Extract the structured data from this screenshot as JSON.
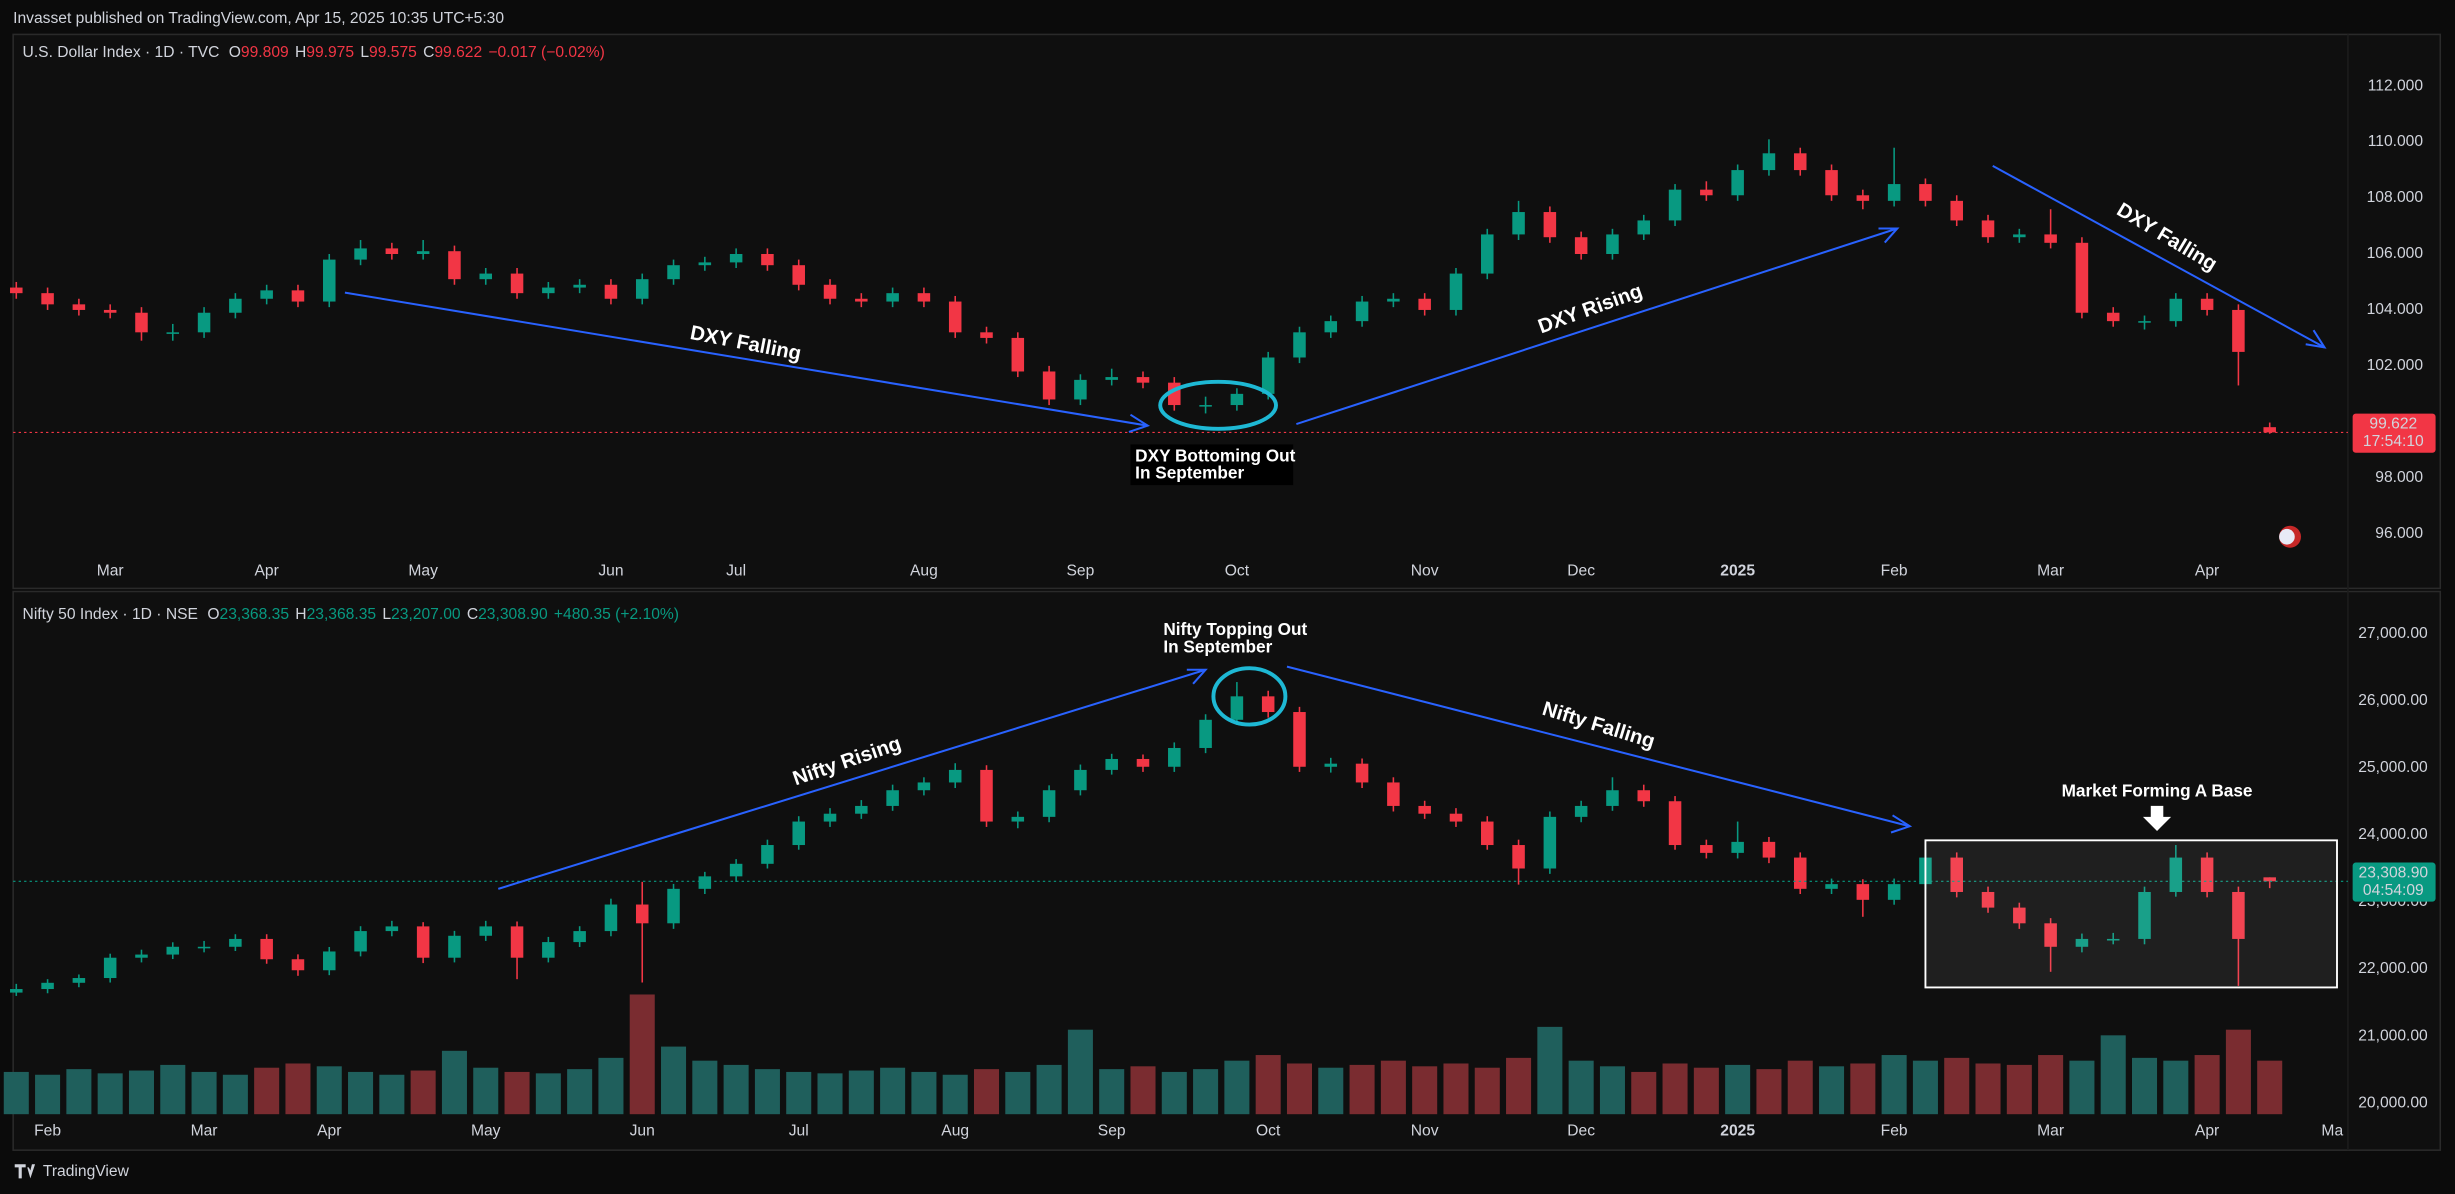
{
  "header": "Invasset published on TradingView.com, Apr 15, 2025 10:35 UTC+5:30",
  "footer": "TradingView",
  "chart_data": [
    {
      "type": "candlestick",
      "legend": {
        "symbol": "U.S. Dollar Index · 1D · TVC",
        "fields": [
          {
            "key": "O",
            "value": "99.809"
          },
          {
            "key": "H",
            "value": "99.975"
          },
          {
            "key": "L",
            "value": "99.575"
          },
          {
            "key": "C",
            "value": "99.622"
          }
        ],
        "change": "−0.017 (−0.02%)"
      },
      "legend_color": "#f23645",
      "up_color": "#089981",
      "down_color": "#f23645",
      "tag_color": "#f23645",
      "last_label": "99.622",
      "countdown": "17:54:10",
      "grid": false,
      "ylim": [
        95.22,
        113.85
      ],
      "yticks": [
        {
          "value": 96,
          "label": "96.000"
        },
        {
          "value": 98,
          "label": "98.000"
        },
        {
          "value": 100,
          "label": "100.000"
        },
        {
          "value": 102,
          "label": "102.000"
        },
        {
          "value": 104,
          "label": "104.000"
        },
        {
          "value": 106,
          "label": "106.000"
        },
        {
          "value": 108,
          "label": "108.000"
        },
        {
          "value": 110,
          "label": "110.000"
        },
        {
          "value": 112,
          "label": "112.000"
        }
      ],
      "categories": [
        null,
        null,
        null,
        "Mar",
        null,
        null,
        null,
        null,
        "Apr",
        null,
        null,
        null,
        null,
        "May",
        null,
        null,
        null,
        null,
        null,
        "Jun",
        null,
        null,
        null,
        "Jul",
        null,
        null,
        null,
        null,
        null,
        "Aug",
        null,
        null,
        null,
        null,
        "Sep",
        null,
        null,
        null,
        null,
        "Oct",
        null,
        null,
        null,
        null,
        null,
        "Nov",
        null,
        null,
        null,
        null,
        "Dec",
        null,
        null,
        null,
        null,
        "2025",
        null,
        null,
        null,
        null,
        "Feb",
        null,
        null,
        null,
        null,
        "Mar",
        null,
        null,
        null,
        null,
        "Apr",
        null,
        null
      ],
      "ohlc": [
        [
          104.8,
          105.0,
          104.4,
          104.6
        ],
        [
          104.6,
          104.8,
          104.0,
          104.2
        ],
        [
          104.2,
          104.4,
          103.8,
          104.0
        ],
        [
          104.0,
          104.2,
          103.7,
          103.9
        ],
        [
          103.9,
          104.1,
          102.9,
          103.2
        ],
        [
          103.2,
          103.5,
          102.9,
          103.2
        ],
        [
          103.2,
          104.1,
          103.0,
          103.9
        ],
        [
          103.9,
          104.6,
          103.7,
          104.4
        ],
        [
          104.4,
          104.9,
          104.2,
          104.7
        ],
        [
          104.7,
          104.9,
          104.1,
          104.3
        ],
        [
          104.3,
          106.0,
          104.1,
          105.8
        ],
        [
          105.8,
          106.5,
          105.6,
          106.2
        ],
        [
          106.2,
          106.4,
          105.8,
          106.0
        ],
        [
          106.0,
          106.5,
          105.8,
          106.1
        ],
        [
          106.1,
          106.3,
          104.9,
          105.1
        ],
        [
          105.1,
          105.5,
          104.9,
          105.3
        ],
        [
          105.3,
          105.5,
          104.4,
          104.6
        ],
        [
          104.6,
          105.0,
          104.4,
          104.8
        ],
        [
          104.8,
          105.1,
          104.6,
          104.9
        ],
        [
          104.9,
          105.1,
          104.2,
          104.4
        ],
        [
          104.4,
          105.3,
          104.2,
          105.1
        ],
        [
          105.1,
          105.8,
          104.9,
          105.6
        ],
        [
          105.6,
          105.9,
          105.4,
          105.7
        ],
        [
          105.7,
          106.2,
          105.5,
          106.0
        ],
        [
          106.0,
          106.2,
          105.4,
          105.6
        ],
        [
          105.6,
          105.8,
          104.7,
          104.9
        ],
        [
          104.9,
          105.1,
          104.2,
          104.4
        ],
        [
          104.4,
          104.6,
          104.1,
          104.3
        ],
        [
          104.3,
          104.8,
          104.1,
          104.6
        ],
        [
          104.6,
          104.8,
          104.1,
          104.3
        ],
        [
          104.3,
          104.5,
          103.0,
          103.2
        ],
        [
          103.2,
          103.4,
          102.8,
          103.0
        ],
        [
          103.0,
          103.2,
          101.6,
          101.8
        ],
        [
          101.8,
          102.0,
          100.6,
          100.8
        ],
        [
          100.8,
          101.7,
          100.6,
          101.5
        ],
        [
          101.5,
          101.9,
          101.3,
          101.6
        ],
        [
          101.6,
          101.8,
          101.2,
          101.4
        ],
        [
          101.4,
          101.6,
          100.4,
          100.6
        ],
        [
          100.6,
          100.9,
          100.3,
          100.6
        ],
        [
          100.6,
          101.2,
          100.4,
          101.0
        ],
        [
          101.0,
          102.5,
          100.8,
          102.3
        ],
        [
          102.3,
          103.4,
          102.1,
          103.2
        ],
        [
          103.2,
          103.8,
          103.0,
          103.6
        ],
        [
          103.6,
          104.5,
          103.4,
          104.3
        ],
        [
          104.3,
          104.6,
          104.1,
          104.4
        ],
        [
          104.4,
          104.6,
          103.8,
          104.0
        ],
        [
          104.0,
          105.5,
          103.8,
          105.3
        ],
        [
          105.3,
          106.9,
          105.1,
          106.7
        ],
        [
          106.7,
          107.9,
          106.5,
          107.5
        ],
        [
          107.5,
          107.7,
          106.4,
          106.6
        ],
        [
          106.6,
          106.8,
          105.8,
          106.0
        ],
        [
          106.0,
          106.9,
          105.8,
          106.7
        ],
        [
          106.7,
          107.4,
          106.5,
          107.2
        ],
        [
          107.2,
          108.5,
          107.0,
          108.3
        ],
        [
          108.3,
          108.6,
          107.9,
          108.1
        ],
        [
          108.1,
          109.2,
          107.9,
          109.0
        ],
        [
          109.0,
          110.1,
          108.8,
          109.6
        ],
        [
          109.6,
          109.8,
          108.8,
          109.0
        ],
        [
          109.0,
          109.2,
          107.9,
          108.1
        ],
        [
          108.1,
          108.3,
          107.6,
          107.9
        ],
        [
          107.9,
          109.8,
          107.7,
          108.5
        ],
        [
          108.5,
          108.7,
          107.7,
          107.9
        ],
        [
          107.9,
          108.1,
          107.0,
          107.2
        ],
        [
          107.2,
          107.4,
          106.4,
          106.6
        ],
        [
          106.6,
          106.9,
          106.4,
          106.7
        ],
        [
          106.7,
          107.6,
          106.2,
          106.4
        ],
        [
          106.4,
          106.6,
          103.7,
          103.9
        ],
        [
          103.9,
          104.1,
          103.4,
          103.6
        ],
        [
          103.6,
          103.8,
          103.3,
          103.6
        ],
        [
          103.6,
          104.6,
          103.4,
          104.4
        ],
        [
          104.4,
          104.6,
          103.8,
          104.0
        ],
        [
          104.0,
          104.2,
          101.3,
          102.5
        ],
        [
          99.809,
          99.975,
          99.575,
          99.622
        ]
      ],
      "annotations": [
        "DXY Falling",
        "DXY Bottoming Out",
        "In September",
        "DXY Rising",
        "DXY Falling"
      ]
    },
    {
      "type": "candlestick",
      "legend": {
        "symbol": "Nifty 50 Index · 1D · NSE",
        "fields": [
          {
            "key": "O",
            "value": "23,368.35"
          },
          {
            "key": "H",
            "value": "23,368.35"
          },
          {
            "key": "L",
            "value": "23,207.00"
          },
          {
            "key": "C",
            "value": "23,308.90"
          }
        ],
        "change": "+480.35 (+2.10%)"
      },
      "legend_color": "#089981",
      "up_color": "#089981",
      "down_color": "#f23645",
      "tag_color": "#089981",
      "volume_up_color": "#1f5f5c",
      "volume_down_color": "#7a2c30",
      "last_label": "23,308.90",
      "countdown": "04:54:09",
      "grid": false,
      "ylim": [
        19767,
        27583
      ],
      "yticks": [
        {
          "value": 20000,
          "label": "20,000.00"
        },
        {
          "value": 21000,
          "label": "21,000.00"
        },
        {
          "value": 22000,
          "label": "22,000.00"
        },
        {
          "value": 23000,
          "label": "23,000.00"
        },
        {
          "value": 24000,
          "label": "24,000.00"
        },
        {
          "value": 25000,
          "label": "25,000.00"
        },
        {
          "value": 26000,
          "label": "26,000.00"
        },
        {
          "value": 27000,
          "label": "27,000.00"
        }
      ],
      "volume_ylim": [
        0,
        1000
      ],
      "categories": [
        null,
        "Feb",
        null,
        null,
        null,
        null,
        "Mar",
        null,
        null,
        null,
        "Apr",
        null,
        null,
        null,
        null,
        "May",
        null,
        null,
        null,
        null,
        "Jun",
        null,
        null,
        null,
        null,
        "Jul",
        null,
        null,
        null,
        null,
        "Aug",
        null,
        null,
        null,
        null,
        "Sep",
        null,
        null,
        null,
        null,
        "Oct",
        null,
        null,
        null,
        null,
        "Nov",
        null,
        null,
        null,
        null,
        "Dec",
        null,
        null,
        null,
        null,
        "2025",
        null,
        null,
        null,
        null,
        "Feb",
        null,
        null,
        null,
        null,
        "Mar",
        null,
        null,
        null,
        null,
        "Apr",
        null,
        null,
        null,
        "Ma"
      ],
      "ohlc": [
        [
          21650,
          21780,
          21600,
          21703
        ],
        [
          21703,
          21850,
          21640,
          21796
        ],
        [
          21796,
          21920,
          21730,
          21867
        ],
        [
          21867,
          22230,
          21800,
          22170
        ],
        [
          22170,
          22290,
          22100,
          22217
        ],
        [
          22217,
          22400,
          22150,
          22333
        ],
        [
          22333,
          22420,
          22250,
          22333
        ],
        [
          22333,
          22520,
          22270,
          22450
        ],
        [
          22450,
          22520,
          22080,
          22147
        ],
        [
          22147,
          22220,
          21900,
          21983
        ],
        [
          21983,
          22330,
          21910,
          22263
        ],
        [
          22263,
          22640,
          22190,
          22567
        ],
        [
          22567,
          22720,
          22490,
          22637
        ],
        [
          22637,
          22700,
          22090,
          22170
        ],
        [
          22170,
          22570,
          22100,
          22497
        ],
        [
          22497,
          22720,
          22420,
          22637
        ],
        [
          22637,
          22710,
          21850,
          22170
        ],
        [
          22170,
          22480,
          22100,
          22403
        ],
        [
          22403,
          22640,
          22330,
          22567
        ],
        [
          22567,
          23050,
          22490,
          22963
        ],
        [
          22963,
          23300,
          21800,
          22683
        ],
        [
          22683,
          23270,
          22600,
          23197
        ],
        [
          23197,
          23450,
          23120,
          23383
        ],
        [
          23383,
          23640,
          23300,
          23570
        ],
        [
          23570,
          23930,
          23500,
          23850
        ],
        [
          23850,
          24280,
          23780,
          24200
        ],
        [
          24200,
          24400,
          24120,
          24317
        ],
        [
          24317,
          24520,
          24240,
          24433
        ],
        [
          24433,
          24750,
          24360,
          24667
        ],
        [
          24667,
          24860,
          24590,
          24783
        ],
        [
          24783,
          25070,
          24700,
          24970
        ],
        [
          24970,
          25040,
          24120,
          24200
        ],
        [
          24200,
          24350,
          24100,
          24270
        ],
        [
          24270,
          24740,
          24190,
          24667
        ],
        [
          24667,
          25050,
          24590,
          24970
        ],
        [
          24970,
          25210,
          24900,
          25133
        ],
        [
          25133,
          25200,
          24940,
          25017
        ],
        [
          25017,
          25380,
          24940,
          25297
        ],
        [
          25297,
          25800,
          25220,
          25717
        ],
        [
          25717,
          26280,
          25640,
          26067
        ],
        [
          26067,
          26150,
          25750,
          25833
        ],
        [
          25833,
          25910,
          24940,
          25017
        ],
        [
          25017,
          25150,
          24930,
          25063
        ],
        [
          25063,
          25140,
          24700,
          24783
        ],
        [
          24783,
          24860,
          24350,
          24433
        ],
        [
          24433,
          24510,
          24240,
          24317
        ],
        [
          24317,
          24400,
          24120,
          24200
        ],
        [
          24200,
          24280,
          23780,
          23850
        ],
        [
          23850,
          23930,
          23260,
          23500
        ],
        [
          23500,
          24350,
          23420,
          24270
        ],
        [
          24270,
          24510,
          24190,
          24433
        ],
        [
          24433,
          24860,
          24360,
          24667
        ],
        [
          24667,
          24750,
          24420,
          24503
        ],
        [
          24503,
          24580,
          23780,
          23850
        ],
        [
          23850,
          23930,
          23650,
          23733
        ],
        [
          23733,
          24200,
          23650,
          23897
        ],
        [
          23897,
          23970,
          23580,
          23663
        ],
        [
          23663,
          23740,
          23120,
          23197
        ],
        [
          23197,
          23350,
          23120,
          23267
        ],
        [
          23267,
          23340,
          22780,
          23033
        ],
        [
          23033,
          23350,
          22960,
          23267
        ],
        [
          23267,
          23800,
          23190,
          23663
        ],
        [
          23663,
          23740,
          23070,
          23150
        ],
        [
          23150,
          23230,
          22840,
          22917
        ],
        [
          22917,
          22990,
          22600,
          22683
        ],
        [
          22683,
          22760,
          21960,
          22333
        ],
        [
          22333,
          22530,
          22250,
          22450
        ],
        [
          22450,
          22540,
          22370,
          22450
        ],
        [
          22450,
          23230,
          22370,
          23150
        ],
        [
          23150,
          23850,
          23080,
          23663
        ],
        [
          23663,
          23740,
          23070,
          23150
        ],
        [
          23150,
          23230,
          21750,
          22450
        ],
        [
          23368.35,
          23368.35,
          23207,
          23308.9
        ],
        null,
        null
      ],
      "volume": [
        300,
        280,
        320,
        290,
        310,
        350,
        300,
        280,
        330,
        360,
        340,
        300,
        280,
        310,
        450,
        330,
        300,
        290,
        320,
        400,
        850,
        480,
        380,
        350,
        320,
        300,
        290,
        310,
        330,
        300,
        280,
        320,
        300,
        350,
        600,
        320,
        340,
        300,
        320,
        380,
        420,
        360,
        330,
        350,
        380,
        340,
        360,
        330,
        400,
        620,
        380,
        340,
        300,
        360,
        330,
        350,
        320,
        380,
        340,
        360,
        420,
        380,
        400,
        360,
        350,
        420,
        380,
        560,
        400,
        380,
        420,
        600,
        380,
        null,
        null
      ],
      "annotations": [
        "Nifty Topping Out",
        "In September",
        "Nifty Rising",
        "Nifty Falling",
        "Market Forming A Base"
      ]
    }
  ]
}
